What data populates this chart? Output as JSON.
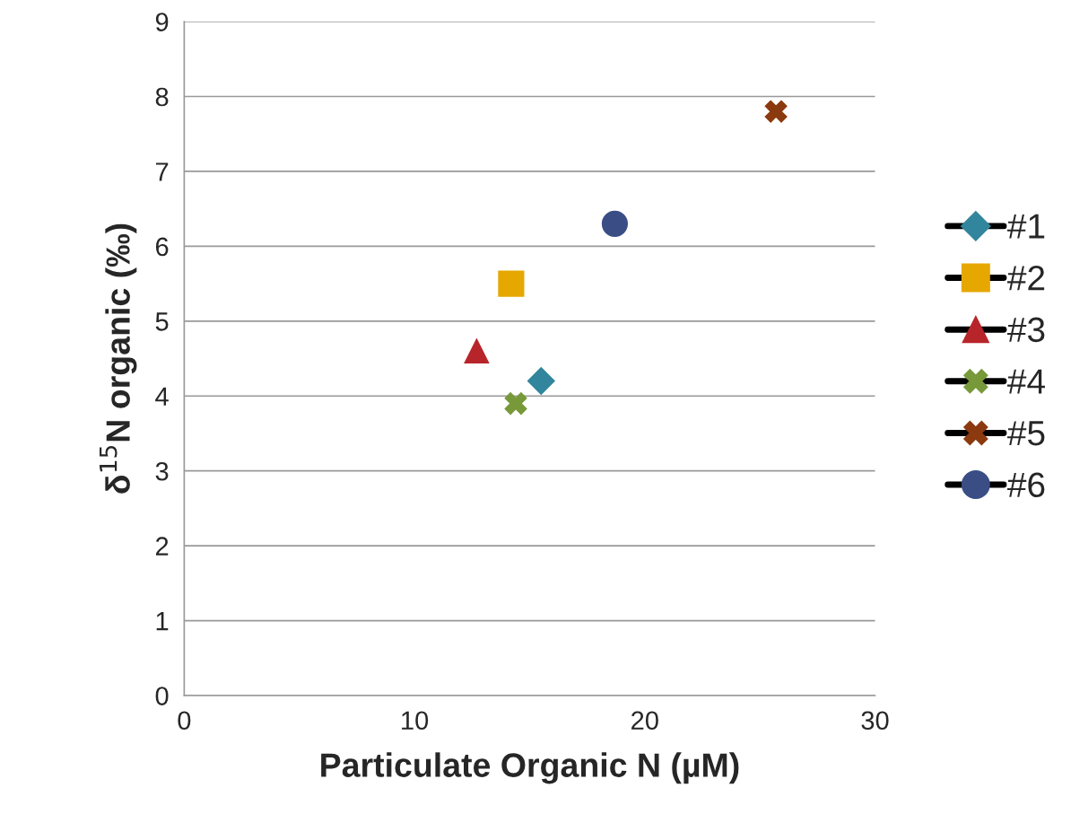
{
  "chart_data": {
    "type": "scatter",
    "xlabel": "Particulate Organic N (µM)",
    "ylabel": "δ$^{15}$N organic (‰)",
    "xlim": [
      0,
      30
    ],
    "xticks": [
      0,
      10,
      20,
      30
    ],
    "ylim": [
      0,
      9
    ],
    "yticks": [
      0,
      1,
      2,
      3,
      4,
      5,
      6,
      7,
      8,
      9
    ],
    "grid": "y",
    "legend": "right",
    "series": [
      {
        "name": "#1",
        "color": "#31859c",
        "marker": "diamond",
        "x": [
          15.5
        ],
        "values": [
          4.2
        ]
      },
      {
        "name": "#2",
        "color": "#e6a800",
        "marker": "square",
        "x": [
          14.2
        ],
        "values": [
          5.5
        ]
      },
      {
        "name": "#3",
        "color": "#b7252a",
        "marker": "triangle",
        "x": [
          12.7
        ],
        "values": [
          4.6
        ]
      },
      {
        "name": "#4",
        "color": "#77993a",
        "marker": "cross",
        "x": [
          14.4
        ],
        "values": [
          3.9
        ]
      },
      {
        "name": "#5",
        "color": "#8b3a0f",
        "marker": "cross",
        "x": [
          25.7
        ],
        "values": [
          7.8
        ]
      },
      {
        "name": "#6",
        "color": "#3a4e85",
        "marker": "circle",
        "x": [
          18.7
        ],
        "values": [
          6.3
        ]
      }
    ]
  }
}
